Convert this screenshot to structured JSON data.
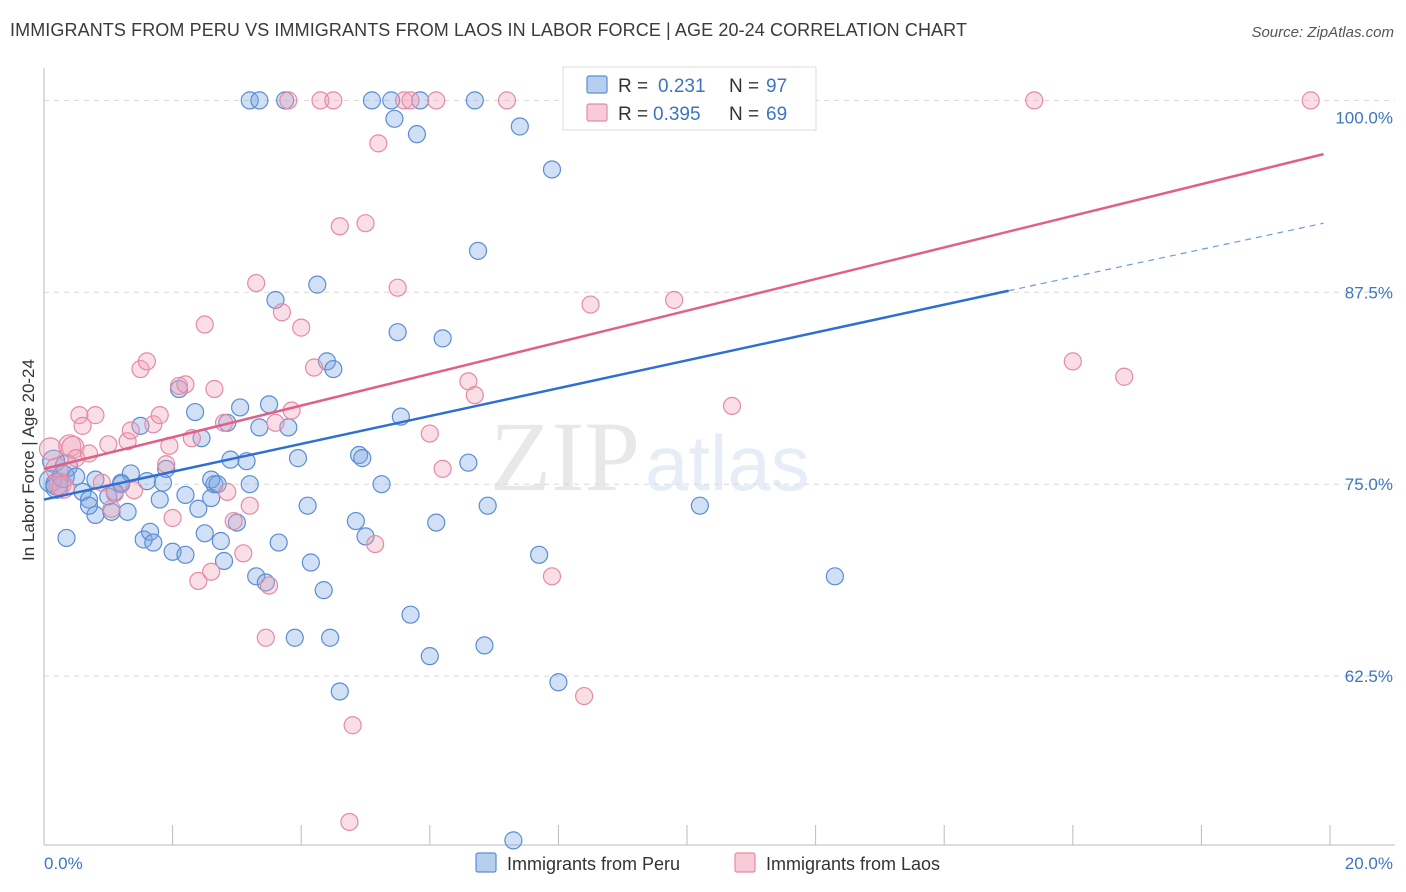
{
  "title": "IMMIGRANTS FROM PERU VS IMMIGRANTS FROM LAOS IN LABOR FORCE | AGE 20-24 CORRELATION CHART",
  "source": "Source: ZipAtlas.com",
  "watermark": {
    "zip": "ZIP",
    "atlas": "atlas"
  },
  "colors": {
    "peru": "#7aa7e0",
    "peru_line": "#2e6fcf",
    "laos": "#f0a0b8",
    "laos_line": "#e0608a",
    "tick": "#3d74c4",
    "grid": "#d8d8d8"
  },
  "legend_stats": [
    {
      "r_label": "R =",
      "r": "0.231",
      "n_label": "N =",
      "n": "97"
    },
    {
      "r_label": "R =",
      "r": "0.395",
      "n_label": "N =",
      "n": "69"
    }
  ],
  "chart_data": {
    "type": "scatter",
    "title": "IMMIGRANTS FROM PERU VS IMMIGRANTS FROM LAOS IN LABOR FORCE | AGE 20-24 CORRELATION CHART",
    "xlabel": "",
    "ylabel": "In Labor Force | Age 20-24",
    "xlim": [
      0,
      20
    ],
    "ylim": [
      51.5,
      102.5
    ],
    "x_tick_labels": [
      "0.0%",
      "20.0%"
    ],
    "y_ticks": [
      62.5,
      75.0,
      87.5,
      100.0
    ],
    "y_tick_labels": [
      "62.5%",
      "75.0%",
      "87.5%",
      "100.0%"
    ],
    "grid": true,
    "legend_position": "top-center",
    "series": [
      {
        "name": "Immigrants from Peru",
        "regression": {
          "x_start": 0.0,
          "y_start": 74.0,
          "x_solid_end": 15.0,
          "y_solid_end": 87.6,
          "x_end": 19.9,
          "y_end": 92.0
        },
        "points": [
          [
            0.1,
            75.2
          ],
          [
            0.15,
            76.5
          ],
          [
            0.2,
            75.0
          ],
          [
            0.2,
            74.8
          ],
          [
            0.3,
            75.5
          ],
          [
            0.35,
            76.2
          ],
          [
            0.35,
            71.5
          ],
          [
            0.5,
            75.5
          ],
          [
            0.6,
            74.5
          ],
          [
            0.7,
            74.0
          ],
          [
            0.8,
            75.3
          ],
          [
            0.8,
            73.0
          ],
          [
            1.0,
            74.2
          ],
          [
            1.05,
            73.2
          ],
          [
            1.1,
            74.5
          ],
          [
            1.2,
            75.1
          ],
          [
            1.3,
            73.2
          ],
          [
            1.35,
            75.7
          ],
          [
            1.5,
            78.8
          ],
          [
            1.55,
            71.4
          ],
          [
            1.6,
            75.2
          ],
          [
            1.65,
            71.9
          ],
          [
            1.7,
            71.2
          ],
          [
            1.8,
            74.0
          ],
          [
            1.85,
            75.1
          ],
          [
            1.9,
            76.0
          ],
          [
            2.0,
            70.6
          ],
          [
            2.1,
            81.2
          ],
          [
            2.2,
            74.3
          ],
          [
            2.2,
            70.4
          ],
          [
            2.35,
            79.7
          ],
          [
            2.4,
            73.4
          ],
          [
            2.45,
            78.0
          ],
          [
            2.5,
            71.8
          ],
          [
            2.6,
            74.1
          ],
          [
            2.65,
            75.0
          ],
          [
            2.75,
            71.3
          ],
          [
            2.8,
            70.0
          ],
          [
            2.85,
            79.0
          ],
          [
            2.9,
            76.6
          ],
          [
            3.0,
            72.5
          ],
          [
            3.05,
            80.0
          ],
          [
            3.15,
            76.5
          ],
          [
            3.2,
            75.0
          ],
          [
            3.3,
            69.0
          ],
          [
            3.35,
            78.7
          ],
          [
            3.45,
            68.6
          ],
          [
            3.5,
            80.2
          ],
          [
            3.6,
            87.0
          ],
          [
            3.65,
            71.2
          ],
          [
            3.75,
            100.0
          ],
          [
            3.8,
            78.7
          ],
          [
            3.9,
            65.0
          ],
          [
            3.95,
            76.7
          ],
          [
            4.1,
            73.6
          ],
          [
            4.15,
            69.9
          ],
          [
            4.25,
            88.0
          ],
          [
            4.35,
            68.1
          ],
          [
            4.4,
            83.0
          ],
          [
            4.45,
            65.0
          ],
          [
            4.5,
            82.5
          ],
          [
            4.6,
            61.5
          ],
          [
            4.85,
            72.6
          ],
          [
            4.9,
            76.9
          ],
          [
            4.95,
            76.7
          ],
          [
            5.0,
            71.6
          ],
          [
            5.1,
            100.0
          ],
          [
            5.25,
            75.0
          ],
          [
            5.4,
            100.0
          ],
          [
            5.45,
            98.8
          ],
          [
            5.5,
            84.9
          ],
          [
            5.55,
            79.4
          ],
          [
            5.7,
            66.5
          ],
          [
            5.8,
            97.8
          ],
          [
            5.85,
            100.0
          ],
          [
            6.0,
            63.8
          ],
          [
            6.1,
            72.5
          ],
          [
            6.2,
            84.5
          ],
          [
            6.6,
            76.4
          ],
          [
            6.7,
            100.0
          ],
          [
            6.75,
            90.2
          ],
          [
            6.85,
            64.5
          ],
          [
            6.9,
            73.6
          ],
          [
            7.3,
            51.8
          ],
          [
            7.4,
            98.3
          ],
          [
            7.7,
            70.4
          ],
          [
            7.9,
            95.5
          ],
          [
            8.0,
            62.1
          ],
          [
            10.2,
            73.6
          ],
          [
            12.3,
            69.0
          ],
          [
            2.6,
            75.3
          ],
          [
            3.2,
            100.0
          ],
          [
            1.2,
            75.0
          ],
          [
            0.7,
            73.6
          ],
          [
            2.7,
            75.0
          ],
          [
            3.35,
            100.0
          ],
          [
            8.5,
            100.0
          ]
        ]
      },
      {
        "name": "Immigrants from Laos",
        "regression": {
          "x_start": 0.0,
          "y_start": 76.0,
          "x_solid_end": 19.9,
          "y_solid_end": 96.5,
          "x_end": 19.9,
          "y_end": 96.5
        },
        "points": [
          [
            0.1,
            77.3
          ],
          [
            0.2,
            76.0
          ],
          [
            0.25,
            75.0
          ],
          [
            0.3,
            74.8
          ],
          [
            0.4,
            77.5
          ],
          [
            0.45,
            77.4
          ],
          [
            0.5,
            76.7
          ],
          [
            0.55,
            79.5
          ],
          [
            0.6,
            78.8
          ],
          [
            0.7,
            77.0
          ],
          [
            0.8,
            79.5
          ],
          [
            0.9,
            75.1
          ],
          [
            1.0,
            77.6
          ],
          [
            1.05,
            73.4
          ],
          [
            1.1,
            74.4
          ],
          [
            1.3,
            77.8
          ],
          [
            1.35,
            78.5
          ],
          [
            1.4,
            74.6
          ],
          [
            1.5,
            82.5
          ],
          [
            1.6,
            83.0
          ],
          [
            1.7,
            78.9
          ],
          [
            1.8,
            79.5
          ],
          [
            1.9,
            76.3
          ],
          [
            1.95,
            77.5
          ],
          [
            2.0,
            72.8
          ],
          [
            2.1,
            81.4
          ],
          [
            2.2,
            81.5
          ],
          [
            2.3,
            78.0
          ],
          [
            2.4,
            68.7
          ],
          [
            2.5,
            85.4
          ],
          [
            2.6,
            69.3
          ],
          [
            2.65,
            81.2
          ],
          [
            2.8,
            79.0
          ],
          [
            2.85,
            74.5
          ],
          [
            2.95,
            72.6
          ],
          [
            3.1,
            70.5
          ],
          [
            3.2,
            73.6
          ],
          [
            3.3,
            88.1
          ],
          [
            3.45,
            65.0
          ],
          [
            3.5,
            68.4
          ],
          [
            3.6,
            79.0
          ],
          [
            3.7,
            86.2
          ],
          [
            3.8,
            100.0
          ],
          [
            3.85,
            79.8
          ],
          [
            4.0,
            85.2
          ],
          [
            4.2,
            82.6
          ],
          [
            4.3,
            100.0
          ],
          [
            4.5,
            100.0
          ],
          [
            4.6,
            91.8
          ],
          [
            4.75,
            53.0
          ],
          [
            4.8,
            59.3
          ],
          [
            5.0,
            92.0
          ],
          [
            5.15,
            71.1
          ],
          [
            5.2,
            97.2
          ],
          [
            5.5,
            87.8
          ],
          [
            5.6,
            100.0
          ],
          [
            5.7,
            100.0
          ],
          [
            6.0,
            78.3
          ],
          [
            6.1,
            100.0
          ],
          [
            6.2,
            76.0
          ],
          [
            6.6,
            81.7
          ],
          [
            6.7,
            80.8
          ],
          [
            7.2,
            100.0
          ],
          [
            7.9,
            69.0
          ],
          [
            8.4,
            61.2
          ],
          [
            8.5,
            86.7
          ],
          [
            9.8,
            87.0
          ],
          [
            10.7,
            80.1
          ],
          [
            11.5,
            100.0
          ],
          [
            15.4,
            100.0
          ],
          [
            16.0,
            83.0
          ],
          [
            16.8,
            82.0
          ],
          [
            19.7,
            100.0
          ]
        ]
      }
    ]
  },
  "bottom_legend": [
    "Immigrants from Peru",
    "Immigrants from Laos"
  ]
}
